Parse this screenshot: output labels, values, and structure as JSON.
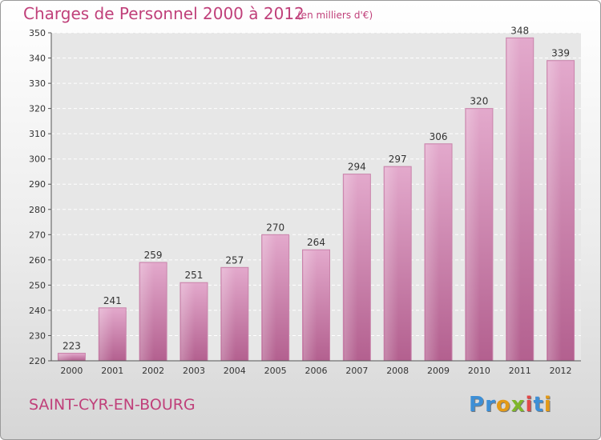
{
  "header": {
    "title": "Charges de Personnel 2000 à 2012",
    "subtitle": "(en milliers d'€)"
  },
  "footer": {
    "town": "SAINT-CYR-EN-BOURG",
    "logo_letters": [
      "P",
      "r",
      "o",
      "x",
      "i",
      "t",
      "i"
    ]
  },
  "colors": {
    "accent": "#c0407a",
    "bar": "#c9609c",
    "logo": [
      "#3d8fd6",
      "#3d8fd6",
      "#e39a17",
      "#7fb62a",
      "#e14848",
      "#3d8fd6",
      "#e39a17"
    ]
  },
  "chart_data": {
    "type": "bar",
    "title": "Charges de Personnel 2000 à 2012",
    "subtitle": "(en milliers d'€)",
    "categories": [
      "2000",
      "2001",
      "2002",
      "2003",
      "2004",
      "2005",
      "2006",
      "2007",
      "2008",
      "2009",
      "2010",
      "2011",
      "2012"
    ],
    "values": [
      223,
      241,
      259,
      251,
      257,
      270,
      264,
      294,
      297,
      306,
      320,
      348,
      339
    ],
    "ylim": [
      220,
      350
    ],
    "yticks": [
      220,
      230,
      240,
      250,
      260,
      270,
      280,
      290,
      300,
      310,
      320,
      330,
      340,
      350
    ],
    "grid": true,
    "legend": "none",
    "xlabel": "",
    "ylabel": ""
  }
}
